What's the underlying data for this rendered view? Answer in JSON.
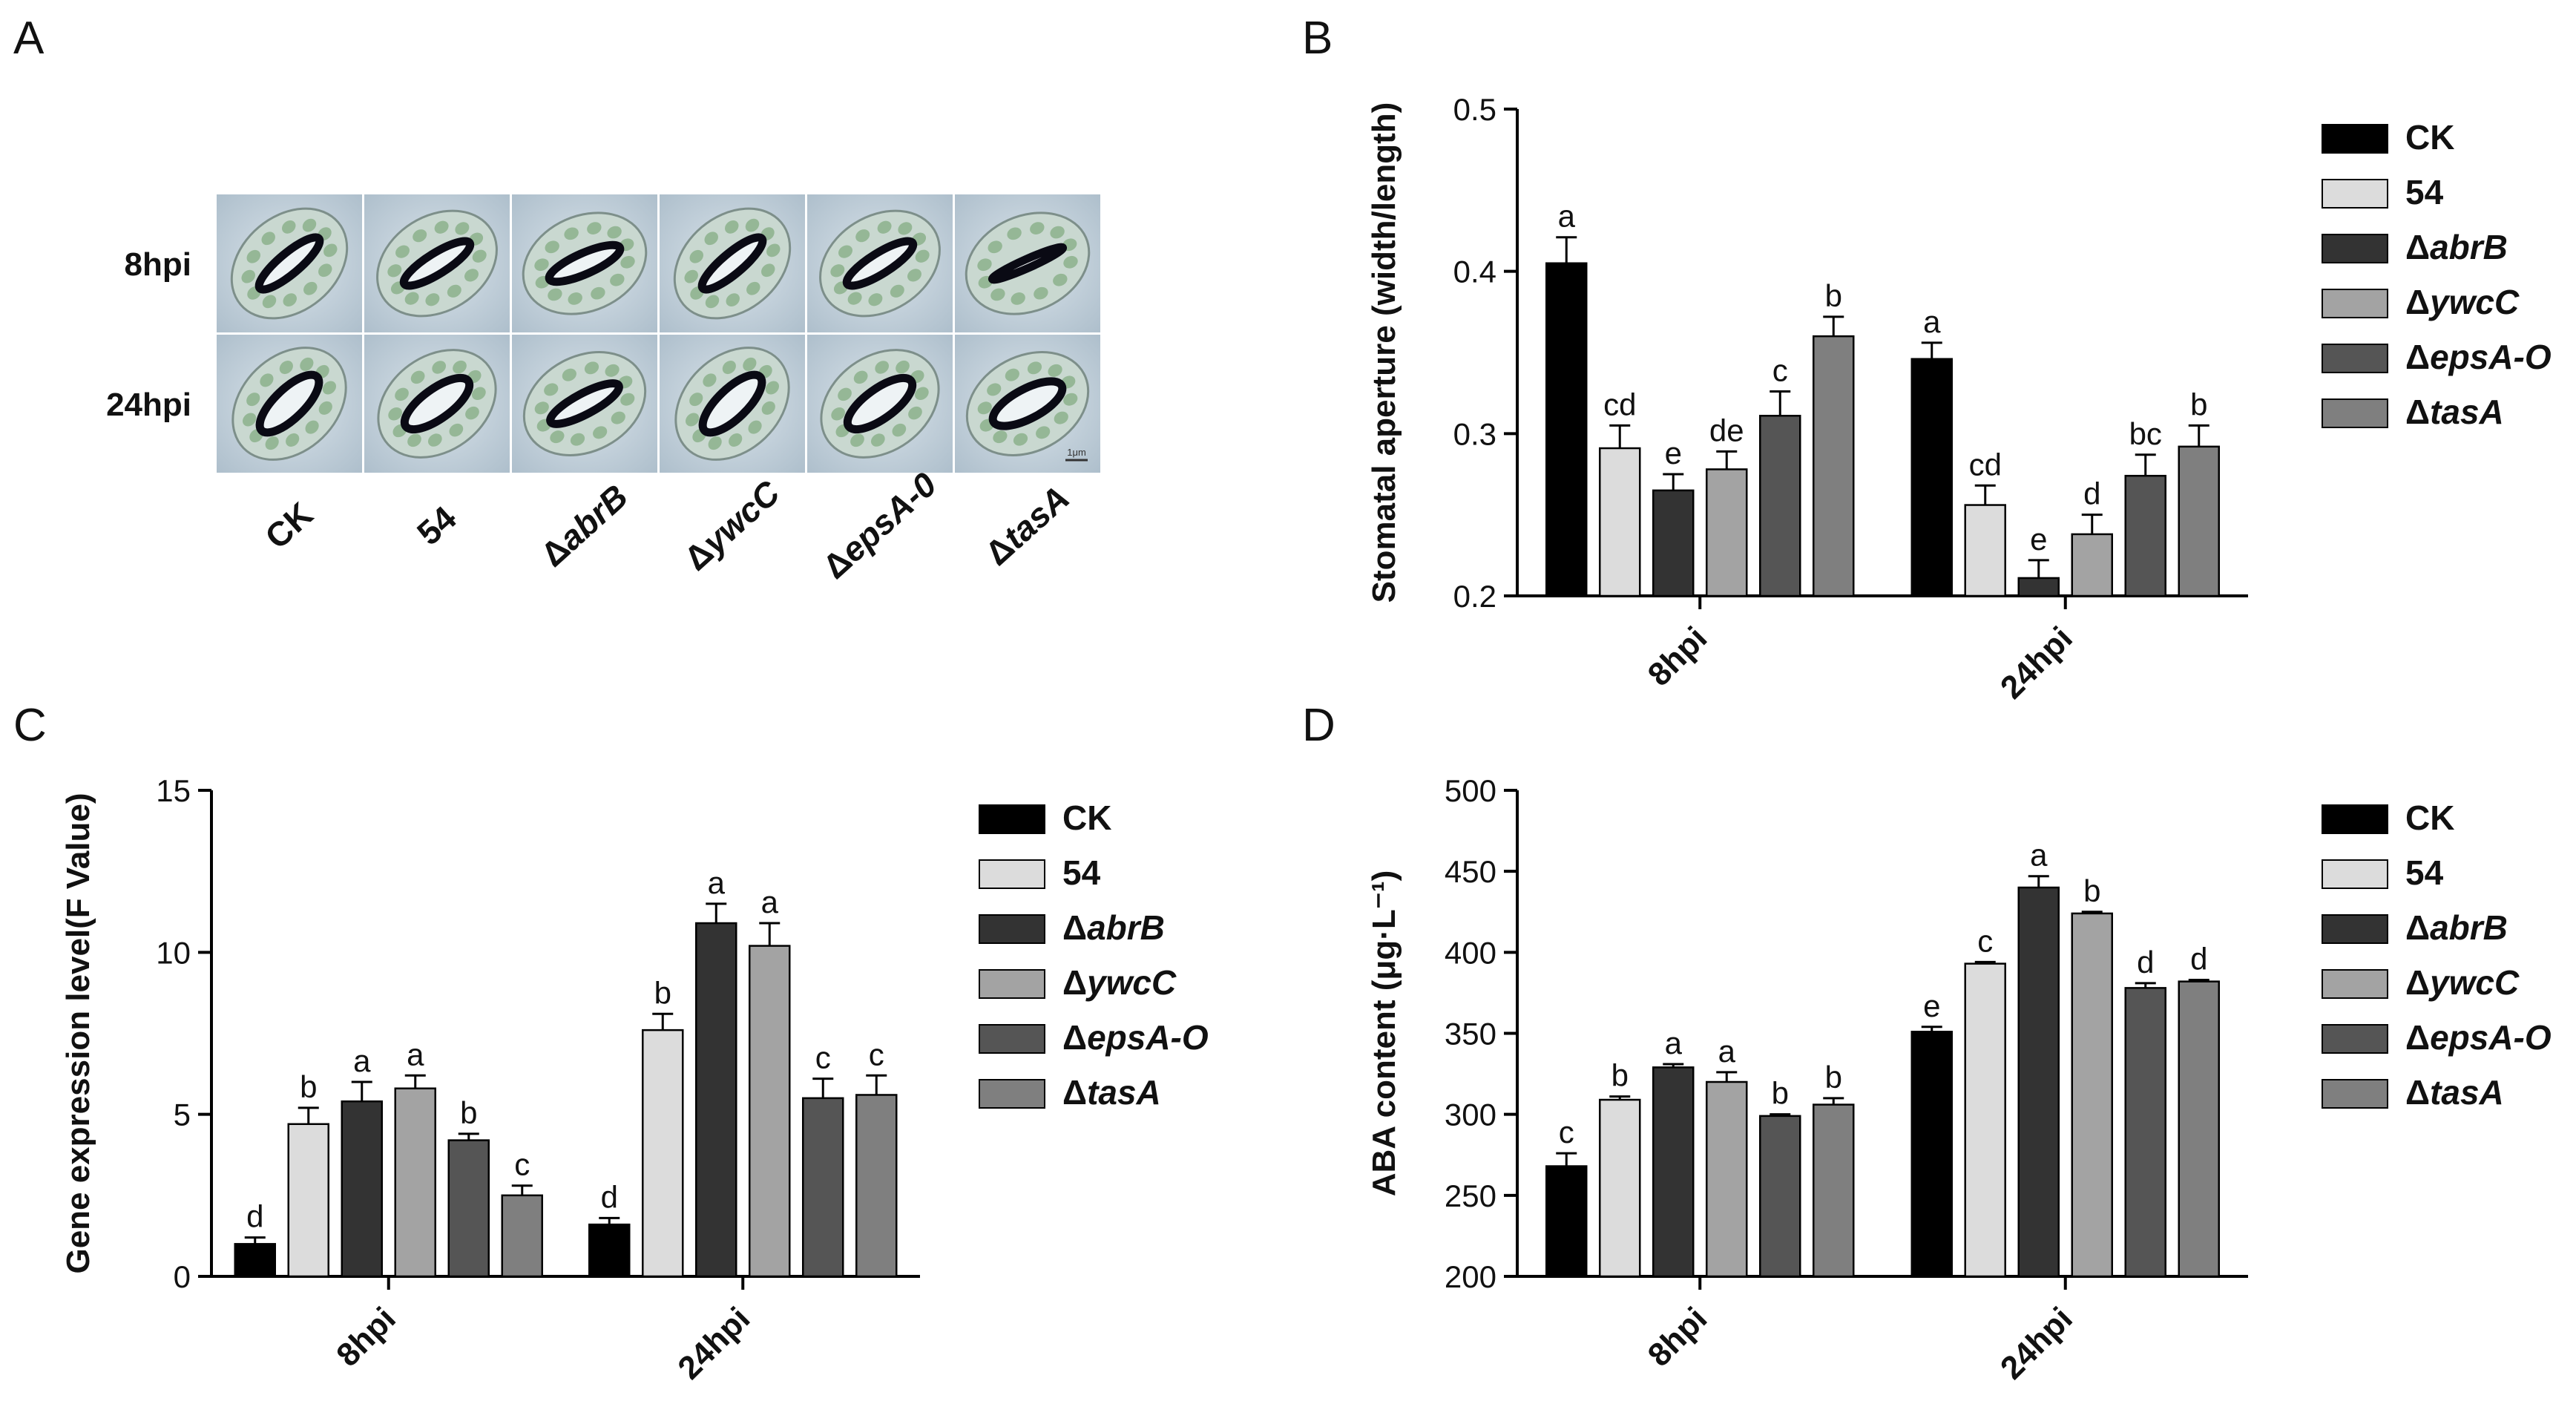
{
  "panels": {
    "A": {
      "letter": "A",
      "row_labels": [
        "8hpi",
        "24hpi"
      ],
      "columns": [
        {
          "plain": "CK",
          "italic": ""
        },
        {
          "plain": "54",
          "italic": ""
        },
        {
          "plain": "Δ",
          "italic": "abrB"
        },
        {
          "plain": "Δ",
          "italic": "ywcC"
        },
        {
          "plain": "Δ",
          "italic": "epsA-0"
        },
        {
          "plain": "Δ",
          "italic": "tasA"
        }
      ],
      "scale_bar_label": "1μm"
    },
    "B": {
      "letter": "B"
    },
    "C": {
      "letter": "C"
    },
    "D": {
      "letter": "D"
    }
  },
  "legend_entries": [
    {
      "plain": "CK",
      "italic": ""
    },
    {
      "plain": "54",
      "italic": ""
    },
    {
      "plain": "Δ",
      "italic": "abrB"
    },
    {
      "plain": "Δ",
      "italic": "ywcC"
    },
    {
      "plain": "Δ",
      "italic": "epsA-O"
    },
    {
      "plain": "Δ",
      "italic": "tasA"
    }
  ],
  "colors": {
    "CK": "#000000",
    "54": "#dcdcdc",
    "abrB": "#333333",
    "ywcC": "#a3a3a3",
    "epsA": "#555555",
    "tasA": "#7f7f7f"
  },
  "chart_data": [
    {
      "panel": "B",
      "type": "bar",
      "ylabel": "Stomatal aperture (width/length)",
      "xlabel": "",
      "categories": [
        "8hpi",
        "24hpi"
      ],
      "ylim": [
        0.2,
        0.5
      ],
      "yticks": [
        0.2,
        0.3,
        0.4,
        0.5
      ],
      "ytick_labels": [
        "0.2",
        "0.3",
        "0.4",
        "0.5"
      ],
      "series": [
        {
          "name": "CK",
          "values": [
            0.405,
            0.346
          ],
          "errors": [
            0.016,
            0.01
          ],
          "letters": [
            "a",
            "a"
          ]
        },
        {
          "name": "54",
          "values": [
            0.291,
            0.256
          ],
          "errors": [
            0.014,
            0.012
          ],
          "letters": [
            "cd",
            "cd"
          ]
        },
        {
          "name": "ΔabrB",
          "values": [
            0.265,
            0.211
          ],
          "errors": [
            0.01,
            0.011
          ],
          "letters": [
            "e",
            "e"
          ]
        },
        {
          "name": "ΔywcC",
          "values": [
            0.278,
            0.238
          ],
          "errors": [
            0.011,
            0.012
          ],
          "letters": [
            "de",
            "d"
          ]
        },
        {
          "name": "ΔepsA-O",
          "values": [
            0.311,
            0.274
          ],
          "errors": [
            0.015,
            0.013
          ],
          "letters": [
            "c",
            "bc"
          ]
        },
        {
          "name": "ΔtasA",
          "values": [
            0.36,
            0.292
          ],
          "errors": [
            0.012,
            0.013
          ],
          "letters": [
            "b",
            "b"
          ]
        }
      ],
      "legend": "right"
    },
    {
      "panel": "C",
      "type": "bar",
      "ylabel": "Gene expression level(F Value)",
      "xlabel": "",
      "categories": [
        "8hpi",
        "24hpi"
      ],
      "ylim": [
        0,
        15
      ],
      "yticks": [
        0,
        5,
        10,
        15
      ],
      "ytick_labels": [
        "0",
        "5",
        "10",
        "15"
      ],
      "series": [
        {
          "name": "CK",
          "values": [
            1.0,
            1.6
          ],
          "errors": [
            0.2,
            0.2
          ],
          "letters": [
            "d",
            "d"
          ]
        },
        {
          "name": "54",
          "values": [
            4.7,
            7.6
          ],
          "errors": [
            0.5,
            0.5
          ],
          "letters": [
            "b",
            "b"
          ]
        },
        {
          "name": "ΔabrB",
          "values": [
            5.4,
            10.9
          ],
          "errors": [
            0.6,
            0.6
          ],
          "letters": [
            "a",
            "a"
          ]
        },
        {
          "name": "ΔywcC",
          "values": [
            5.8,
            10.2
          ],
          "errors": [
            0.4,
            0.7
          ],
          "letters": [
            "a",
            "a"
          ]
        },
        {
          "name": "ΔepsA-O",
          "values": [
            4.2,
            5.5
          ],
          "errors": [
            0.2,
            0.6
          ],
          "letters": [
            "b",
            "c"
          ]
        },
        {
          "name": "ΔtasA",
          "values": [
            2.5,
            5.6
          ],
          "errors": [
            0.3,
            0.6
          ],
          "letters": [
            "c",
            "c"
          ]
        }
      ],
      "legend": "right"
    },
    {
      "panel": "D",
      "type": "bar",
      "ylabel": "ABA content (μg·L⁻¹)",
      "xlabel": "",
      "categories": [
        "8hpi",
        "24hpi"
      ],
      "ylim": [
        200,
        500
      ],
      "yticks": [
        200,
        250,
        300,
        350,
        400,
        450,
        500
      ],
      "ytick_labels": [
        "200",
        "250",
        "300",
        "350",
        "400",
        "450",
        "500"
      ],
      "series": [
        {
          "name": "CK",
          "values": [
            268,
            351
          ],
          "errors": [
            8,
            3
          ],
          "letters": [
            "c",
            "e"
          ]
        },
        {
          "name": "54",
          "values": [
            309,
            393
          ],
          "errors": [
            2,
            1
          ],
          "letters": [
            "b",
            "c"
          ]
        },
        {
          "name": "ΔabrB",
          "values": [
            329,
            440
          ],
          "errors": [
            2,
            7
          ],
          "letters": [
            "a",
            "a"
          ]
        },
        {
          "name": "ΔywcC",
          "values": [
            320,
            424
          ],
          "errors": [
            6,
            1
          ],
          "letters": [
            "a",
            "b"
          ]
        },
        {
          "name": "ΔepsA-O",
          "values": [
            299,
            378
          ],
          "errors": [
            1,
            3
          ],
          "letters": [
            "b",
            "d"
          ]
        },
        {
          "name": "ΔtasA",
          "values": [
            306,
            382
          ],
          "errors": [
            4,
            1
          ],
          "letters": [
            "b",
            "d"
          ]
        }
      ],
      "legend": "right"
    }
  ]
}
